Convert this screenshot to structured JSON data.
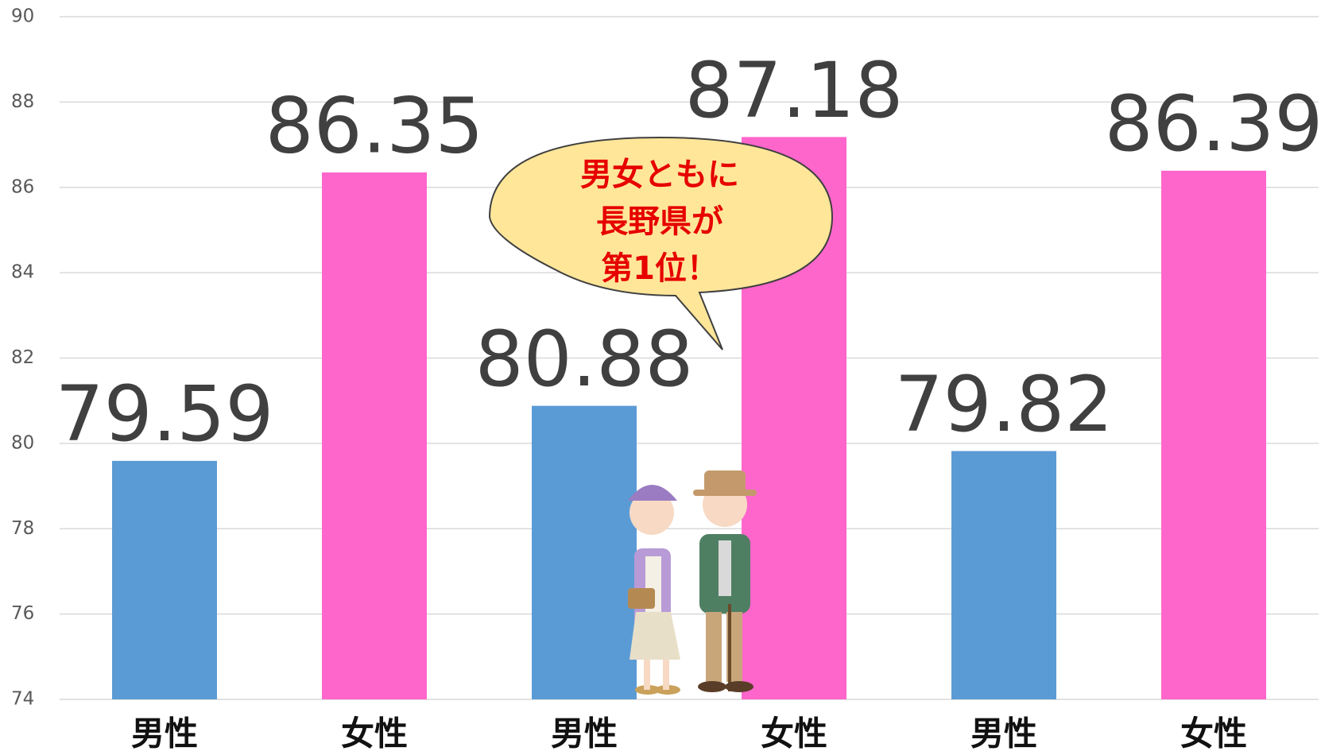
{
  "chart_data": {
    "type": "bar",
    "categories": [
      "男性",
      "女性",
      "男性",
      "女性",
      "男性",
      "女性"
    ],
    "values": [
      79.59,
      86.35,
      80.88,
      87.18,
      79.82,
      86.39
    ],
    "colors": [
      "#5b9bd5",
      "#ff66cc",
      "#5b9bd5",
      "#ff66cc",
      "#5b9bd5",
      "#ff66cc"
    ],
    "ylim": [
      74,
      90
    ],
    "yticks": [
      74,
      76,
      78,
      80,
      82,
      84,
      86,
      88,
      90
    ],
    "grid": true,
    "annotation": [
      "男女ともに",
      "長野県が",
      "第1位！"
    ]
  }
}
